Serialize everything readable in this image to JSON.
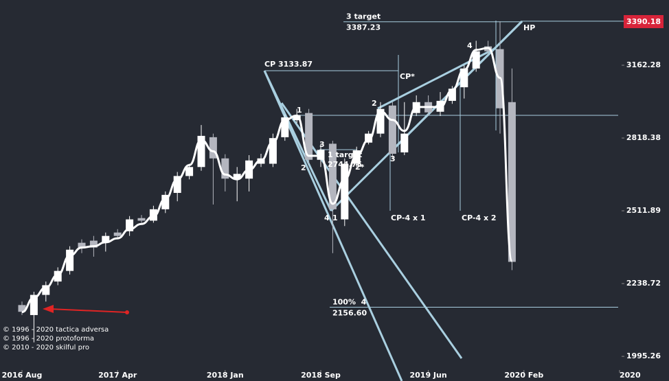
{
  "chart_data": {
    "type": "candlestick",
    "log_scale": true,
    "ylim": [
      1919,
      3506
    ],
    "yticks": [
      3162.28,
      2818.38,
      2511.89,
      2238.72,
      1995.26
    ],
    "price_marker": 3390.18,
    "x": [
      "2016-08",
      "2016-09",
      "2016-10",
      "2016-11",
      "2016-12",
      "2017-01",
      "2017-02",
      "2017-03",
      "2017-04",
      "2017-05",
      "2017-06",
      "2017-07",
      "2017-08",
      "2017-09",
      "2017-10",
      "2017-11",
      "2017-12",
      "2018-01",
      "2018-02",
      "2018-03",
      "2018-04",
      "2018-05",
      "2018-06",
      "2018-07",
      "2018-08",
      "2018-09",
      "2018-10",
      "2018-11",
      "2018-12",
      "2019-01",
      "2019-02",
      "2019-03",
      "2019-04",
      "2019-05",
      "2019-06",
      "2019-07",
      "2019-08",
      "2019-09",
      "2019-10",
      "2019-11",
      "2019-12",
      "2020-01"
    ],
    "xticks": [
      {
        "value": "2016-08",
        "label": "2016 Aug"
      },
      {
        "value": "2017-04",
        "label": "2017 Apr"
      },
      {
        "value": "2018-01",
        "label": "2018 Jan"
      },
      {
        "value": "2018-09",
        "label": "2018 Sep"
      },
      {
        "value": "2019-06",
        "label": "2019 Jun"
      },
      {
        "value": "2020-02",
        "label": "2020 Feb"
      },
      {
        "value": "2020-10",
        "label": "2020"
      }
    ],
    "up_color": "#ffffff",
    "down_color": "#b4b6bf",
    "open": [
      2164,
      2130,
      2199,
      2246,
      2284,
      2388,
      2396,
      2388,
      2427,
      2432,
      2483,
      2473,
      2518,
      2584,
      2654,
      2692,
      2822,
      2729,
      2643,
      2643,
      2706,
      2706,
      2822,
      2899,
      2932,
      2723,
      2793,
      2478,
      2706,
      2798,
      2838,
      2967,
      2755,
      2932,
      2983,
      2938,
      2989,
      3054,
      3146,
      3258,
      3244,
      2983
    ],
    "high": [
      2176,
      2210,
      2246,
      2297,
      2375,
      2401,
      2414,
      2427,
      2440,
      2491,
      2495,
      2532,
      2590,
      2671,
      2706,
      2877,
      2838,
      2747,
      2692,
      2743,
      2749,
      2838,
      2925,
      2951,
      2951,
      2793,
      2806,
      2729,
      2780,
      2850,
      2983,
      2983,
      2983,
      3015,
      3015,
      3031,
      3060,
      3162,
      3287,
      3287,
      3390,
      3146
    ],
    "low": [
      2130,
      2040,
      2176,
      2233,
      2271,
      2349,
      2336,
      2355,
      2401,
      2414,
      2465,
      2465,
      2503,
      2550,
      2640,
      2676,
      2537,
      2590,
      2550,
      2590,
      2692,
      2692,
      2806,
      2886,
      2706,
      2692,
      2349,
      2452,
      2690,
      2790,
      2822,
      2729,
      2743,
      2918,
      2918,
      2918,
      2975,
      3000,
      3130,
      3217,
      2838,
      2287
    ],
    "close": [
      2141,
      2199,
      2233,
      2284,
      2362,
      2370,
      2370,
      2414,
      2414,
      2478,
      2473,
      2518,
      2576,
      2654,
      2692,
      2828,
      2729,
      2643,
      2663,
      2720,
      2729,
      2818,
      2912,
      2922,
      2723,
      2766,
      2518,
      2706,
      2764,
      2838,
      2951,
      2749,
      2838,
      2983,
      2935,
      2989,
      3047,
      3146,
      3233,
      3233,
      2954,
      2317
    ],
    "line_values": [
      2140,
      2190,
      2225,
      2270,
      2340,
      2370,
      2375,
      2390,
      2405,
      2440,
      2460,
      2490,
      2560,
      2640,
      2700,
      2810,
      2760,
      2660,
      2640,
      2680,
      2720,
      2800,
      2900,
      2920,
      2740,
      2740,
      2540,
      2640,
      2740,
      2810,
      2940,
      2900,
      2850,
      2960,
      2960,
      2960,
      3040,
      3140,
      3240,
      3250,
      3100,
      2320
    ],
    "levels": [
      {
        "name": "3 target",
        "value": 3387.23
      },
      {
        "name": "100%  4",
        "value": 2156.6,
        "value_label": "2156.60"
      }
    ],
    "annotations": [
      "HP",
      "CP 3133.87",
      "CP*",
      "1",
      "2",
      "3",
      "1 target",
      "2744.75",
      "2*",
      "4",
      "1",
      "2",
      "3",
      "4",
      "CP-4 x 1",
      "CP-4 x 2"
    ],
    "footer": [
      "© 1996 - 2020 tactica adversa",
      "© 1996 - 2020 protoforma",
      "© 2010 - 2020 skilful pro"
    ]
  }
}
